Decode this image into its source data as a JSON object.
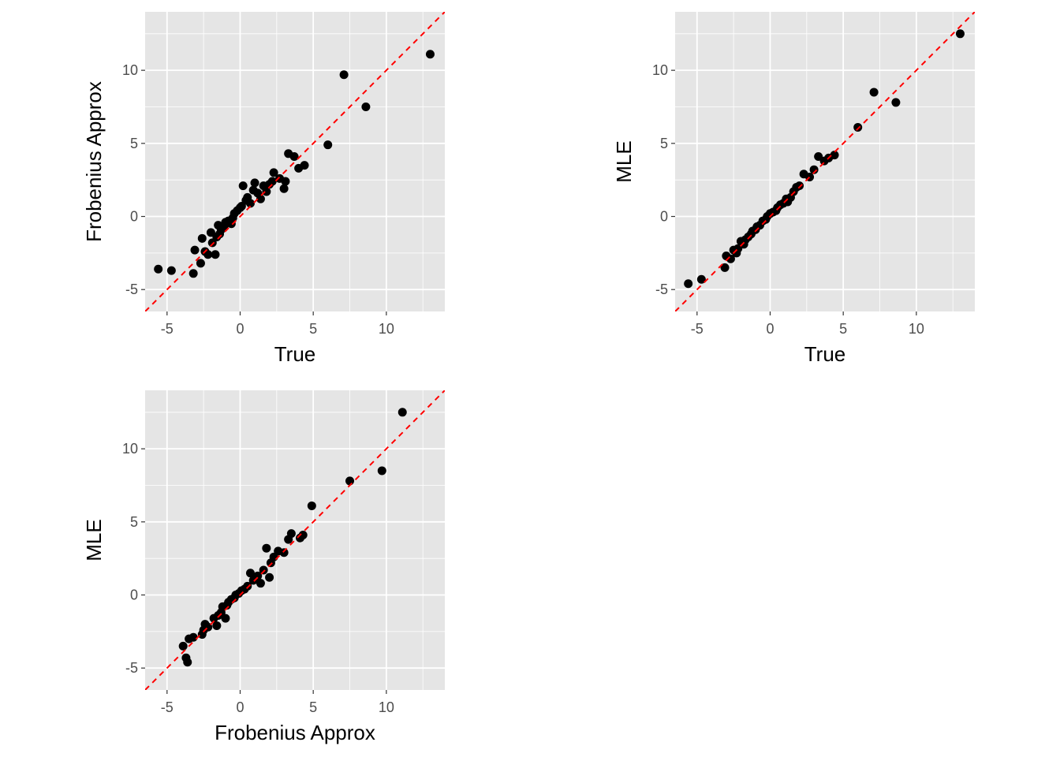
{
  "style": {
    "panel_background": "#e5e5e5",
    "grid_color": "#ffffff",
    "point_color": "#000000",
    "reference_line_color": "#ff0000"
  },
  "chart_data": [
    {
      "type": "scatter",
      "xlabel": "True",
      "ylabel": "Frobenius Approx",
      "xlim": [
        -6.5,
        14
      ],
      "ylim": [
        -6.5,
        14
      ],
      "xticks": [
        -5,
        0,
        5,
        10
      ],
      "yticks": [
        -5,
        0,
        5,
        10
      ],
      "grid": true,
      "reference_line": "y = x (dashed)",
      "x": [
        -5.6,
        -4.7,
        -3.2,
        -3.1,
        -2.7,
        -2.6,
        -2.4,
        -2.2,
        -2.0,
        -1.9,
        -1.7,
        -1.6,
        -1.5,
        -1.4,
        -1.3,
        -1.2,
        -1.1,
        -1.0,
        -0.8,
        -0.6,
        -0.5,
        -0.4,
        -0.2,
        0.0,
        0.1,
        0.2,
        0.4,
        0.5,
        0.7,
        0.9,
        1.0,
        1.2,
        1.4,
        1.6,
        1.8,
        2.0,
        2.2,
        2.3,
        2.7,
        3.0,
        3.1,
        3.3,
        3.7,
        4.0,
        4.4,
        6.0,
        7.1,
        8.6,
        13.0
      ],
      "y": [
        -3.6,
        -3.7,
        -3.9,
        -2.3,
        -3.2,
        -1.5,
        -2.4,
        -2.6,
        -1.1,
        -1.8,
        -2.6,
        -1.4,
        -0.6,
        -1.2,
        -0.9,
        -0.8,
        -0.7,
        -0.4,
        -0.3,
        -0.5,
        -0.1,
        0.2,
        0.4,
        0.6,
        0.7,
        2.1,
        1.1,
        1.3,
        0.9,
        1.8,
        2.3,
        1.6,
        1.2,
        2.1,
        1.7,
        2.2,
        2.4,
        3.0,
        2.6,
        1.9,
        2.4,
        4.3,
        4.1,
        3.3,
        3.5,
        4.9,
        9.7,
        7.5,
        11.1
      ]
    },
    {
      "type": "scatter",
      "xlabel": "True",
      "ylabel": "MLE",
      "xlim": [
        -6.5,
        14
      ],
      "ylim": [
        -6.5,
        14
      ],
      "xticks": [
        -5,
        0,
        5,
        10
      ],
      "yticks": [
        -5,
        0,
        5,
        10
      ],
      "grid": true,
      "reference_line": "y = x (dashed)",
      "x": [
        -5.6,
        -4.7,
        -3.1,
        -3.0,
        -2.7,
        -2.5,
        -2.3,
        -2.2,
        -2.0,
        -1.8,
        -1.7,
        -1.5,
        -1.3,
        -1.2,
        -1.0,
        -0.9,
        -0.7,
        -0.5,
        -0.3,
        -0.2,
        0.0,
        0.2,
        0.4,
        0.5,
        0.7,
        0.9,
        1.1,
        1.2,
        1.4,
        1.6,
        1.8,
        2.0,
        2.3,
        2.7,
        3.0,
        3.3,
        3.7,
        4.0,
        4.4,
        6.0,
        7.1,
        8.6,
        13.0
      ],
      "y": [
        -4.6,
        -4.3,
        -3.5,
        -2.7,
        -2.9,
        -2.3,
        -2.5,
        -2.2,
        -1.7,
        -1.9,
        -1.6,
        -1.4,
        -1.2,
        -1.0,
        -0.9,
        -0.7,
        -0.6,
        -0.3,
        -0.2,
        0.0,
        0.2,
        0.3,
        0.4,
        0.6,
        0.8,
        0.9,
        1.2,
        1.0,
        1.3,
        1.7,
        2.0,
        2.1,
        2.9,
        2.7,
        3.2,
        4.1,
        3.8,
        4.0,
        4.2,
        6.1,
        8.5,
        7.8,
        12.5
      ]
    },
    {
      "type": "scatter",
      "xlabel": "Frobenius Approx",
      "ylabel": "MLE",
      "xlim": [
        -6.5,
        14
      ],
      "ylim": [
        -6.5,
        14
      ],
      "xticks": [
        -5,
        0,
        5,
        10
      ],
      "yticks": [
        -5,
        0,
        5,
        10
      ],
      "grid": true,
      "reference_line": "y = x (dashed)",
      "x": [
        -3.9,
        -3.7,
        -3.6,
        -3.5,
        -3.2,
        -2.6,
        -2.5,
        -2.4,
        -2.2,
        -1.8,
        -1.6,
        -1.5,
        -1.3,
        -1.2,
        -1.0,
        -0.9,
        -0.8,
        -0.6,
        -0.4,
        -0.3,
        -0.1,
        0.1,
        0.3,
        0.5,
        0.7,
        0.9,
        1.2,
        1.4,
        1.6,
        1.8,
        2.0,
        2.1,
        2.3,
        2.6,
        3.0,
        3.3,
        3.5,
        4.1,
        4.3,
        4.9,
        7.5,
        9.7,
        11.1
      ],
      "y": [
        -3.5,
        -4.3,
        -4.6,
        -3.0,
        -2.9,
        -2.7,
        -2.4,
        -2.0,
        -2.2,
        -1.6,
        -2.1,
        -1.4,
        -1.2,
        -0.8,
        -1.6,
        -0.7,
        -0.5,
        -0.3,
        -0.2,
        0.0,
        0.1,
        0.3,
        0.4,
        0.6,
        1.5,
        1.0,
        1.3,
        0.8,
        1.7,
        3.2,
        1.2,
        2.2,
        2.6,
        3.0,
        2.9,
        3.8,
        4.2,
        3.9,
        4.1,
        6.1,
        7.8,
        8.5,
        12.5
      ]
    }
  ]
}
